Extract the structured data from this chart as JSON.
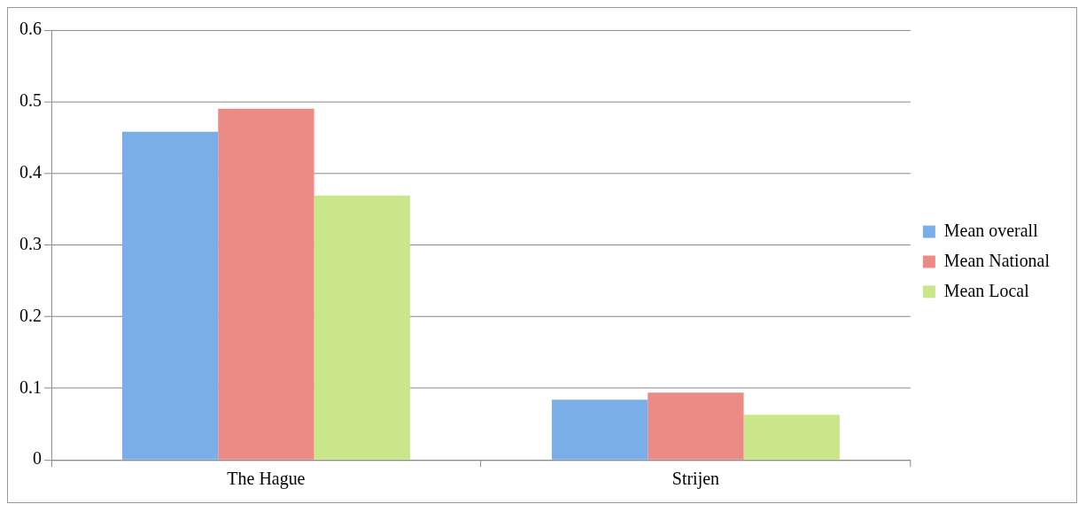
{
  "chart_data": {
    "type": "bar",
    "categories": [
      "The Hague",
      "Strijen"
    ],
    "series": [
      {
        "name": "Mean overall",
        "color": "#7aaee8",
        "values": [
          0.458,
          0.084
        ]
      },
      {
        "name": "Mean National",
        "color": "#ec8a85",
        "values": [
          0.49,
          0.094
        ]
      },
      {
        "name": "Mean Local",
        "color": "#c9e68a",
        "values": [
          0.369,
          0.063
        ]
      }
    ],
    "ylim": [
      0,
      0.6
    ],
    "yticks": [
      0,
      0.1,
      0.2,
      0.3,
      0.4,
      0.5,
      0.6
    ],
    "grid": "y",
    "legend": "right"
  }
}
